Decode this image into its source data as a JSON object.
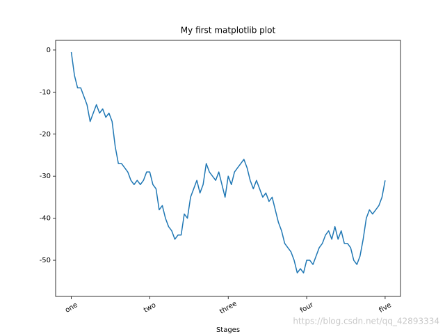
{
  "chart_data": {
    "type": "line",
    "title": "My first matplotlib plot",
    "x_label": "Stages",
    "color": "#1f77b4",
    "xlim": [
      -49.95,
      1048.95
    ],
    "ylim": [
      -58.6,
      2.3
    ],
    "xticks": [
      {
        "value": 0,
        "label": "one"
      },
      {
        "value": 250,
        "label": "two"
      },
      {
        "value": 500,
        "label": "three"
      },
      {
        "value": 750,
        "label": "four"
      },
      {
        "value": 1000,
        "label": "five"
      }
    ],
    "yticks": [
      0,
      -10,
      -20,
      -30,
      -40,
      -50
    ],
    "x": [
      0,
      10,
      20,
      30,
      40,
      50,
      60,
      70,
      80,
      90,
      100,
      110,
      120,
      130,
      140,
      150,
      160,
      170,
      180,
      190,
      200,
      210,
      220,
      230,
      240,
      250,
      260,
      270,
      280,
      290,
      300,
      310,
      320,
      330,
      340,
      350,
      360,
      370,
      380,
      390,
      400,
      410,
      420,
      430,
      440,
      450,
      460,
      470,
      480,
      490,
      500,
      510,
      520,
      530,
      540,
      550,
      560,
      570,
      580,
      590,
      600,
      610,
      620,
      630,
      640,
      650,
      660,
      670,
      680,
      690,
      700,
      710,
      720,
      730,
      740,
      750,
      760,
      770,
      780,
      790,
      800,
      810,
      820,
      830,
      840,
      850,
      860,
      870,
      880,
      890,
      900,
      910,
      920,
      930,
      940,
      950,
      960,
      970,
      980,
      990,
      1000
    ],
    "values": [
      -0.5,
      -6,
      -9,
      -9,
      -11,
      -13,
      -17,
      -15,
      -13,
      -15,
      -14,
      -16,
      -15,
      -17,
      -23,
      -27,
      -27,
      -28,
      -29,
      -31,
      -32,
      -31,
      -32,
      -31,
      -29,
      -29,
      -32,
      -33,
      -38,
      -37,
      -40,
      -42,
      -43,
      -45,
      -44,
      -44,
      -39,
      -40,
      -35,
      -33,
      -31,
      -34,
      -32,
      -27,
      -29,
      -30,
      -31,
      -29,
      -32,
      -35,
      -30,
      -32,
      -29,
      -28,
      -27,
      -26,
      -28,
      -31,
      -33,
      -31,
      -33,
      -35,
      -34,
      -36,
      -35,
      -38,
      -41,
      -43,
      -46,
      -47,
      -48,
      -50,
      -53,
      -52,
      -53,
      -50,
      -50,
      -51,
      -49,
      -47,
      -46,
      -44,
      -43,
      -45,
      -42,
      -45,
      -43,
      -46,
      -46,
      -47,
      -50,
      -51,
      -49,
      -45,
      -40,
      -38,
      -39,
      -38,
      -37,
      -35,
      -31
    ],
    "watermark": "https://blog.csdn.net/qq_42893334"
  }
}
